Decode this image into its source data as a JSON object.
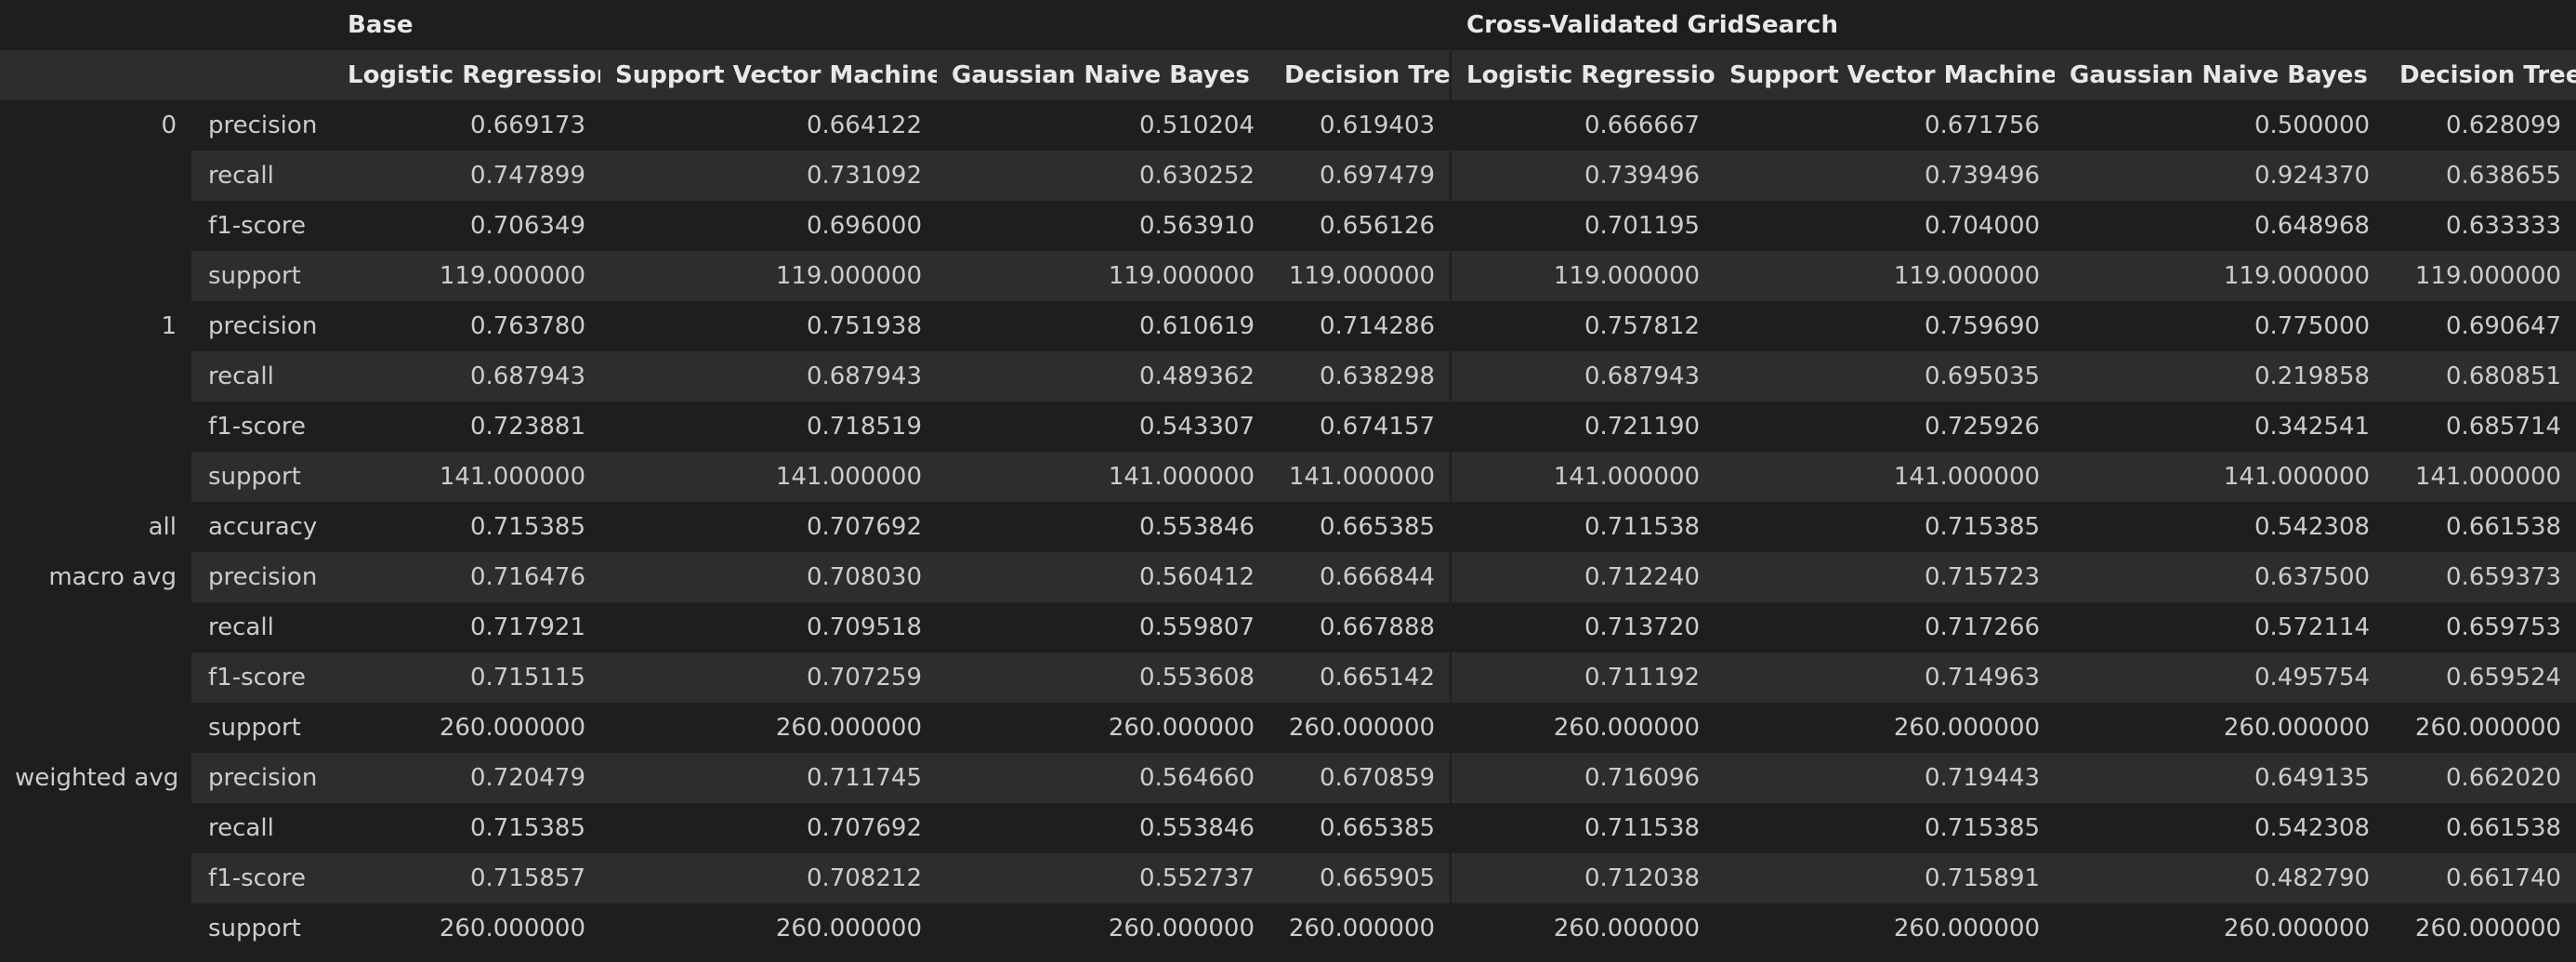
{
  "table": {
    "groups": [
      {
        "label": "Base",
        "span": 4
      },
      {
        "label": "Cross-Validated GridSearch",
        "span": 4
      }
    ],
    "columns": [
      "Logistic Regression",
      "Support Vector Machine",
      "Gaussian Naive Bayes",
      "Decision Tree",
      "Logistic Regression",
      "Support Vector Machine",
      "Gaussian Naive Bayes",
      "Decision Tree"
    ],
    "blocks": [
      {
        "label": "0",
        "rows": [
          {
            "metric": "precision",
            "values": [
              "0.669173",
              "0.664122",
              "0.510204",
              "0.619403",
              "0.666667",
              "0.671756",
              "0.500000",
              "0.628099"
            ]
          },
          {
            "metric": "recall",
            "values": [
              "0.747899",
              "0.731092",
              "0.630252",
              "0.697479",
              "0.739496",
              "0.739496",
              "0.924370",
              "0.638655"
            ]
          },
          {
            "metric": "f1-score",
            "values": [
              "0.706349",
              "0.696000",
              "0.563910",
              "0.656126",
              "0.701195",
              "0.704000",
              "0.648968",
              "0.633333"
            ]
          },
          {
            "metric": "support",
            "values": [
              "119.000000",
              "119.000000",
              "119.000000",
              "119.000000",
              "119.000000",
              "119.000000",
              "119.000000",
              "119.000000"
            ]
          }
        ]
      },
      {
        "label": "1",
        "rows": [
          {
            "metric": "precision",
            "values": [
              "0.763780",
              "0.751938",
              "0.610619",
              "0.714286",
              "0.757812",
              "0.759690",
              "0.775000",
              "0.690647"
            ]
          },
          {
            "metric": "recall",
            "values": [
              "0.687943",
              "0.687943",
              "0.489362",
              "0.638298",
              "0.687943",
              "0.695035",
              "0.219858",
              "0.680851"
            ]
          },
          {
            "metric": "f1-score",
            "values": [
              "0.723881",
              "0.718519",
              "0.543307",
              "0.674157",
              "0.721190",
              "0.725926",
              "0.342541",
              "0.685714"
            ]
          },
          {
            "metric": "support",
            "values": [
              "141.000000",
              "141.000000",
              "141.000000",
              "141.000000",
              "141.000000",
              "141.000000",
              "141.000000",
              "141.000000"
            ]
          }
        ]
      },
      {
        "label": "all",
        "rows": [
          {
            "metric": "accuracy",
            "values": [
              "0.715385",
              "0.707692",
              "0.553846",
              "0.665385",
              "0.711538",
              "0.715385",
              "0.542308",
              "0.661538"
            ]
          }
        ]
      },
      {
        "label": "macro avg",
        "rows": [
          {
            "metric": "precision",
            "values": [
              "0.716476",
              "0.708030",
              "0.560412",
              "0.666844",
              "0.712240",
              "0.715723",
              "0.637500",
              "0.659373"
            ]
          },
          {
            "metric": "recall",
            "values": [
              "0.717921",
              "0.709518",
              "0.559807",
              "0.667888",
              "0.713720",
              "0.717266",
              "0.572114",
              "0.659753"
            ]
          },
          {
            "metric": "f1-score",
            "values": [
              "0.715115",
              "0.707259",
              "0.553608",
              "0.665142",
              "0.711192",
              "0.714963",
              "0.495754",
              "0.659524"
            ]
          },
          {
            "metric": "support",
            "values": [
              "260.000000",
              "260.000000",
              "260.000000",
              "260.000000",
              "260.000000",
              "260.000000",
              "260.000000",
              "260.000000"
            ]
          }
        ]
      },
      {
        "label": "weighted avg",
        "rows": [
          {
            "metric": "precision",
            "values": [
              "0.720479",
              "0.711745",
              "0.564660",
              "0.670859",
              "0.716096",
              "0.719443",
              "0.649135",
              "0.662020"
            ]
          },
          {
            "metric": "recall",
            "values": [
              "0.715385",
              "0.707692",
              "0.553846",
              "0.665385",
              "0.711538",
              "0.715385",
              "0.542308",
              "0.661538"
            ]
          },
          {
            "metric": "f1-score",
            "values": [
              "0.715857",
              "0.708212",
              "0.552737",
              "0.665905",
              "0.712038",
              "0.715891",
              "0.482790",
              "0.661740"
            ]
          },
          {
            "metric": "support",
            "values": [
              "260.000000",
              "260.000000",
              "260.000000",
              "260.000000",
              "260.000000",
              "260.000000",
              "260.000000",
              "260.000000"
            ]
          }
        ]
      }
    ]
  }
}
